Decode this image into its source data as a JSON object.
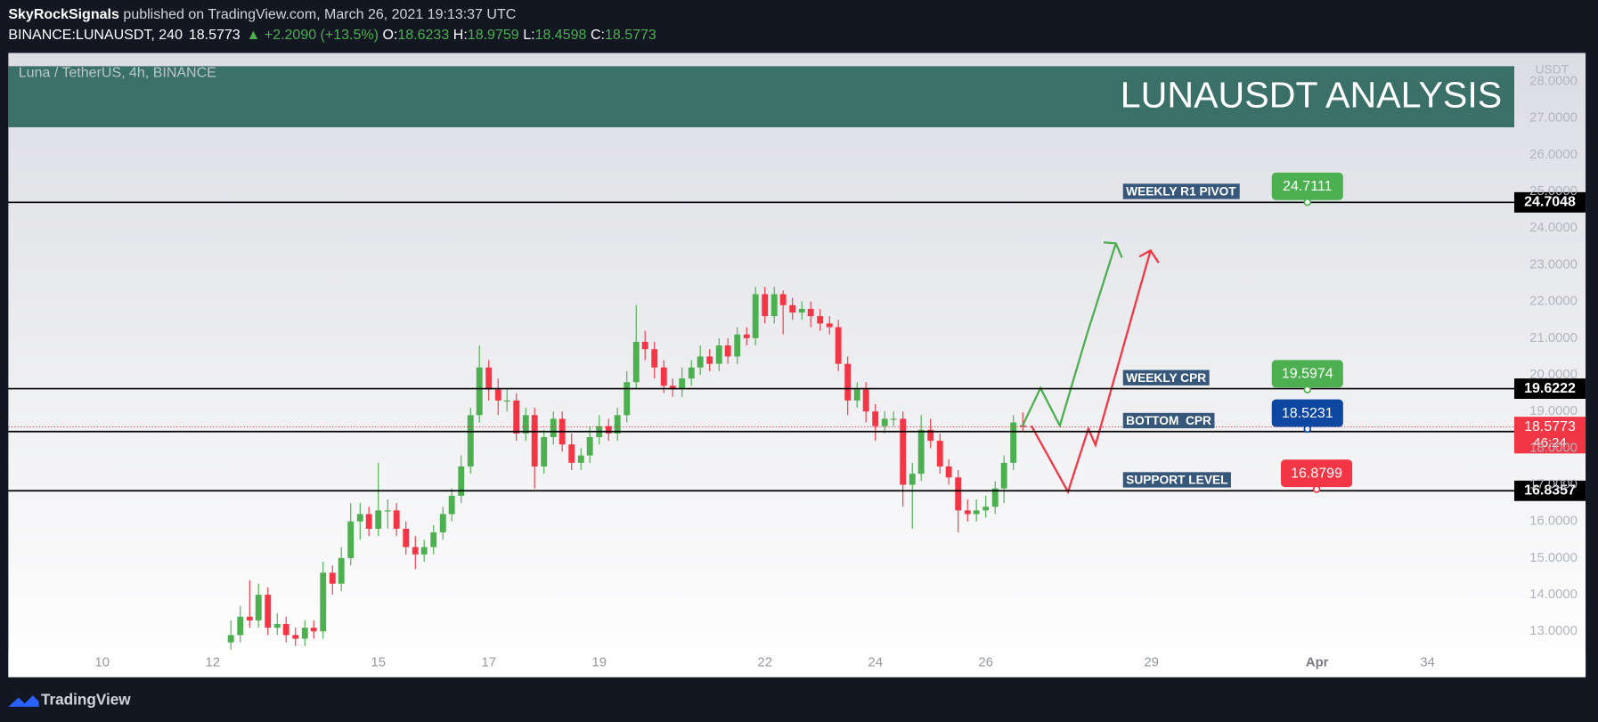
{
  "header": {
    "author": "SkyRockSignals",
    "published": "published on TradingView.com, March 26, 2021 19:13:37 UTC",
    "symbol": "BINANCE:LUNAUSDT, 240",
    "last": "18.5773",
    "change": "▲ +2.2090 (+13.5%)",
    "ohlc": [
      {
        "label": "O:",
        "value": "18.6233"
      },
      {
        "label": "H:",
        "value": "18.9759"
      },
      {
        "label": "L:",
        "value": "18.4598"
      },
      {
        "label": "C:",
        "value": "18.5773"
      }
    ]
  },
  "footer": {
    "brand": "TradingView"
  },
  "chart_data": {
    "type": "candlestick",
    "title": "LUNAUSDT ANALYSIS",
    "subtitle": "Luna / TetherUS, 4h, BINANCE",
    "y_unit": "USDT",
    "up_color": "#4caf50",
    "down_color": "#f23645",
    "x": [
      12.33,
      12.5,
      12.67,
      12.83,
      13,
      13.17,
      13.33,
      13.5,
      13.67,
      13.83,
      14,
      14.17,
      14.33,
      14.5,
      14.67,
      14.83,
      15,
      15.17,
      15.33,
      15.5,
      15.67,
      15.83,
      16,
      16.17,
      16.33,
      16.5,
      16.67,
      16.83,
      17,
      17.17,
      17.33,
      17.5,
      17.67,
      17.83,
      18,
      18.17,
      18.33,
      18.5,
      18.67,
      18.83,
      19,
      19.17,
      19.33,
      19.5,
      19.67,
      19.83,
      20,
      20.17,
      20.33,
      20.5,
      20.67,
      20.83,
      21,
      21.17,
      21.33,
      21.5,
      21.67,
      21.83,
      22,
      22.17,
      22.33,
      22.5,
      22.67,
      22.83,
      23,
      23.17,
      23.33,
      23.5,
      23.67,
      23.83,
      24,
      24.17,
      24.33,
      24.5,
      24.67,
      24.83,
      25,
      25.17,
      25.33,
      25.5,
      25.67,
      25.83,
      26,
      26.17,
      26.33,
      26.5,
      26.67
    ],
    "open": [
      12.7,
      12.9,
      13.4,
      13.3,
      14.0,
      13.1,
      13.2,
      12.9,
      12.8,
      13.1,
      13.0,
      14.6,
      14.3,
      15.0,
      16.0,
      16.2,
      15.8,
      16.3,
      16.3,
      15.8,
      15.3,
      15.1,
      15.3,
      15.7,
      16.2,
      16.7,
      17.5,
      18.9,
      20.2,
      19.6,
      19.3,
      19.3,
      18.4,
      18.9,
      17.5,
      18.3,
      18.8,
      18.1,
      17.6,
      17.8,
      18.3,
      18.6,
      18.4,
      18.9,
      19.8,
      20.9,
      20.7,
      20.2,
      19.7,
      19.6,
      19.9,
      20.2,
      20.5,
      20.3,
      20.8,
      20.5,
      21.1,
      21.0,
      22.2,
      21.6,
      22.2,
      21.9,
      21.7,
      21.8,
      21.6,
      21.4,
      21.3,
      20.3,
      19.3,
      19.6,
      19.0,
      18.6,
      18.8,
      18.8,
      17.0,
      17.3,
      18.5,
      18.2,
      17.5,
      17.2,
      16.3,
      16.2,
      16.3,
      16.4,
      16.9,
      17.6,
      18.6233
    ],
    "high": [
      13.3,
      13.7,
      14.4,
      14.3,
      14.2,
      13.5,
      13.4,
      13.1,
      13.3,
      13.3,
      14.9,
      14.8,
      15.3,
      16.5,
      16.5,
      16.4,
      17.6,
      16.6,
      16.5,
      16.0,
      15.6,
      15.5,
      15.9,
      16.4,
      16.9,
      17.8,
      19.1,
      20.8,
      20.4,
      19.9,
      19.6,
      19.5,
      19.1,
      19.1,
      18.5,
      19.0,
      19.0,
      18.4,
      18.0,
      18.6,
      18.9,
      18.8,
      19.1,
      20.1,
      21.9,
      21.2,
      20.9,
      20.4,
      19.9,
      20.2,
      20.4,
      20.8,
      20.7,
      21.0,
      21.0,
      21.3,
      21.3,
      22.4,
      22.4,
      22.4,
      22.3,
      22.1,
      22.0,
      22.0,
      21.8,
      21.6,
      21.5,
      20.5,
      19.8,
      19.8,
      19.2,
      19.0,
      19.0,
      19.0,
      17.6,
      18.9,
      18.8,
      18.4,
      17.7,
      17.4,
      16.6,
      16.6,
      16.7,
      17.1,
      17.8,
      18.9,
      18.9759
    ],
    "low": [
      12.5,
      12.7,
      13.1,
      13.1,
      12.9,
      12.9,
      12.7,
      12.6,
      12.6,
      12.8,
      12.8,
      14.0,
      14.1,
      14.8,
      15.5,
      15.6,
      15.6,
      15.8,
      15.6,
      15.1,
      14.7,
      14.9,
      15.1,
      15.5,
      16.0,
      16.5,
      17.3,
      18.7,
      19.3,
      18.9,
      19.0,
      18.2,
      18.2,
      16.9,
      17.3,
      18.1,
      17.9,
      17.4,
      17.4,
      17.6,
      18.1,
      18.2,
      18.2,
      18.7,
      19.6,
      20.4,
      19.9,
      19.5,
      19.4,
      19.4,
      19.7,
      20.0,
      20.1,
      20.1,
      20.3,
      20.3,
      20.8,
      20.8,
      21.4,
      21.4,
      21.1,
      21.5,
      21.5,
      21.3,
      21.2,
      21.1,
      20.1,
      18.9,
      19.1,
      18.7,
      18.2,
      18.4,
      18.6,
      16.4,
      15.8,
      17.1,
      18.0,
      17.3,
      17.0,
      15.7,
      16.0,
      16.0,
      16.1,
      16.2,
      16.5,
      17.4,
      18.4598
    ],
    "close": [
      12.9,
      13.4,
      13.3,
      14.0,
      13.1,
      13.2,
      12.9,
      12.8,
      13.1,
      13.0,
      14.6,
      14.3,
      15.0,
      16.0,
      16.2,
      15.8,
      16.3,
      16.3,
      15.8,
      15.3,
      15.1,
      15.3,
      15.7,
      16.2,
      16.7,
      17.5,
      18.9,
      20.2,
      19.6,
      19.3,
      19.3,
      18.4,
      18.9,
      17.5,
      18.3,
      18.8,
      18.1,
      17.6,
      17.8,
      18.3,
      18.6,
      18.4,
      18.9,
      19.8,
      20.9,
      20.7,
      20.2,
      19.7,
      19.6,
      19.9,
      20.2,
      20.5,
      20.3,
      20.8,
      20.5,
      21.1,
      21.0,
      22.2,
      21.6,
      22.2,
      21.9,
      21.7,
      21.8,
      21.6,
      21.4,
      21.3,
      20.3,
      19.3,
      19.6,
      19.0,
      18.6,
      18.8,
      18.8,
      17.0,
      17.3,
      18.5,
      18.2,
      17.5,
      17.2,
      16.3,
      16.2,
      16.3,
      16.4,
      16.9,
      17.6,
      18.7,
      18.5773
    ],
    "xlim": [
      8.3,
      35.57
    ],
    "xticks": [
      10,
      12,
      15,
      17,
      19,
      22,
      24,
      26,
      29,
      {
        "value": 32,
        "label": "Apr"
      },
      34
    ],
    "ylim": [
      11.75,
      28.42
    ],
    "yticks": [
      {
        "value": 13,
        "label": "13.0000"
      },
      {
        "value": 14,
        "label": "14.0000"
      },
      {
        "value": 15,
        "label": "15.0000"
      },
      {
        "value": 16,
        "label": "16.0000"
      },
      {
        "value": 17,
        "label": "17.0000"
      },
      {
        "value": 18,
        "label": "18.0000"
      },
      {
        "value": 19,
        "label": "19.0000"
      },
      {
        "value": 20,
        "label": "20.0000"
      },
      {
        "value": 21,
        "label": "21.0000"
      },
      {
        "value": 22,
        "label": "22.0000"
      },
      {
        "value": 23,
        "label": "23.0000"
      },
      {
        "value": 24,
        "label": "24.0000"
      },
      {
        "value": 25,
        "label": "25.0000"
      },
      {
        "value": 26,
        "label": "26.0000"
      },
      {
        "value": 27,
        "label": "27.0000"
      },
      {
        "value": 28,
        "label": "28.0000"
      }
    ],
    "levels": [
      {
        "name": "WEEKLY R1 PIVOT",
        "value": 24.7048,
        "marker": 24.7111,
        "marker_color": "#4caf50"
      },
      {
        "name": "WEEKLY CPR",
        "value": 19.6222,
        "marker": 19.5974,
        "marker_color": "#4caf50"
      },
      {
        "name": "BOTTOM  CPR",
        "value": 18.4515,
        "marker": 18.5231,
        "marker_color": "#0d47a1"
      },
      {
        "name": "SUPPORT LEVEL",
        "value": 16.8357,
        "marker": 16.8799,
        "marker_color": "#f23645"
      }
    ],
    "last_price": {
      "value": 18.5773,
      "countdown": "46:24",
      "color": "#f23645"
    }
  }
}
